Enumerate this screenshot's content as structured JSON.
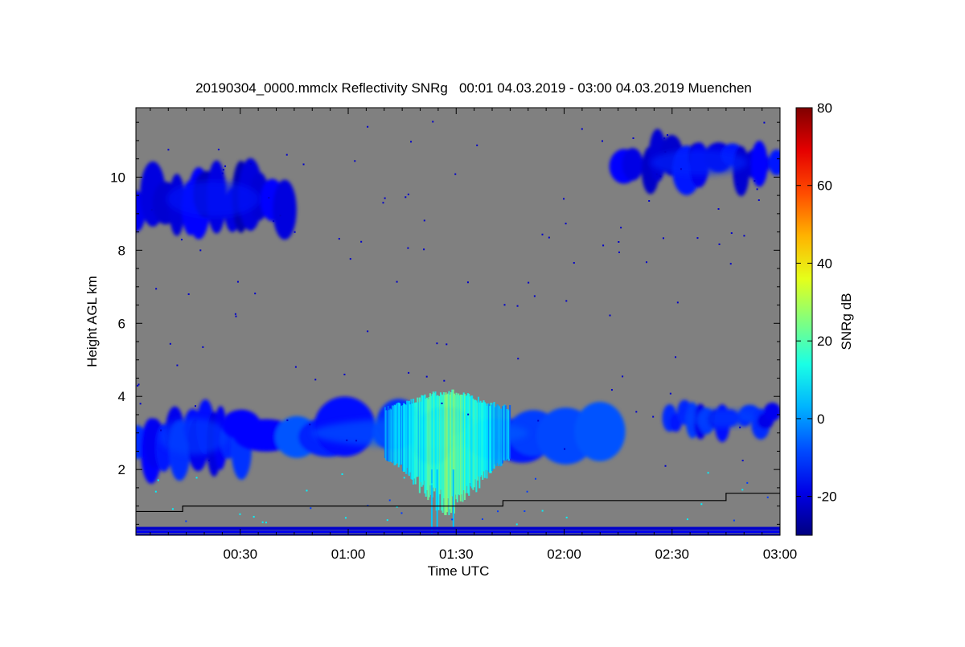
{
  "chart_data": {
    "type": "heatmap",
    "title": "20190304_0000.mmclx Reflectivity SNRg   00:01 04.03.2019 - 03:00 04.03.2019 Muenchen",
    "xlabel": "Time UTC",
    "ylabel": "Height AGL km",
    "colorbar_label": "SNRg dB",
    "x_range_minutes": [
      1,
      180
    ],
    "x_ticks": [
      {
        "value": 30,
        "label": "00:30"
      },
      {
        "value": 60,
        "label": "01:00"
      },
      {
        "value": 90,
        "label": "01:30"
      },
      {
        "value": 120,
        "label": "02:00"
      },
      {
        "value": 150,
        "label": "02:30"
      },
      {
        "value": 180,
        "label": "03:00"
      }
    ],
    "y_range_km": [
      0.2,
      11.9
    ],
    "y_ticks": [
      2,
      4,
      6,
      8,
      10
    ],
    "color_range_db": [
      -30,
      80
    ],
    "colorbar_ticks": [
      -20,
      0,
      20,
      40,
      60,
      80
    ],
    "colormap": "jet",
    "background_color": "#808080",
    "grid": false,
    "legend": "colorbar-right",
    "echo_regions": [
      {
        "name": "upper-cloud-left",
        "t_start": 1,
        "t_end": 44,
        "h_bottom": 8.4,
        "h_top": 10.4,
        "snr_db": -20
      },
      {
        "name": "upper-cloud-right",
        "t_start": 135,
        "t_end": 180,
        "h_bottom": 9.7,
        "h_top": 11.1,
        "snr_db": -18
      },
      {
        "name": "mid-layer-left",
        "t_start": 1,
        "t_end": 33,
        "h_bottom": 1.9,
        "h_top": 3.9,
        "snr_db": -15
      },
      {
        "name": "mid-layer-center",
        "t_start": 30,
        "t_end": 130,
        "h_bottom": 2.2,
        "h_top": 3.8,
        "snr_db": -12
      },
      {
        "name": "precipitation-core",
        "t_start": 70,
        "t_end": 105,
        "h_bottom": 0.3,
        "h_top": 4.2,
        "snr_db": 10
      },
      {
        "name": "mid-layer-right",
        "t_start": 147,
        "t_end": 180,
        "h_bottom": 2.9,
        "h_top": 3.9,
        "snr_db": -15
      }
    ],
    "boundary_line": {
      "name": "step-line",
      "points": [
        [
          1,
          0.85
        ],
        [
          14,
          0.85
        ],
        [
          14,
          1.0
        ],
        [
          103,
          1.0
        ],
        [
          103,
          1.15
        ],
        [
          165,
          1.15
        ],
        [
          165,
          1.35
        ],
        [
          180,
          1.35
        ]
      ]
    }
  }
}
